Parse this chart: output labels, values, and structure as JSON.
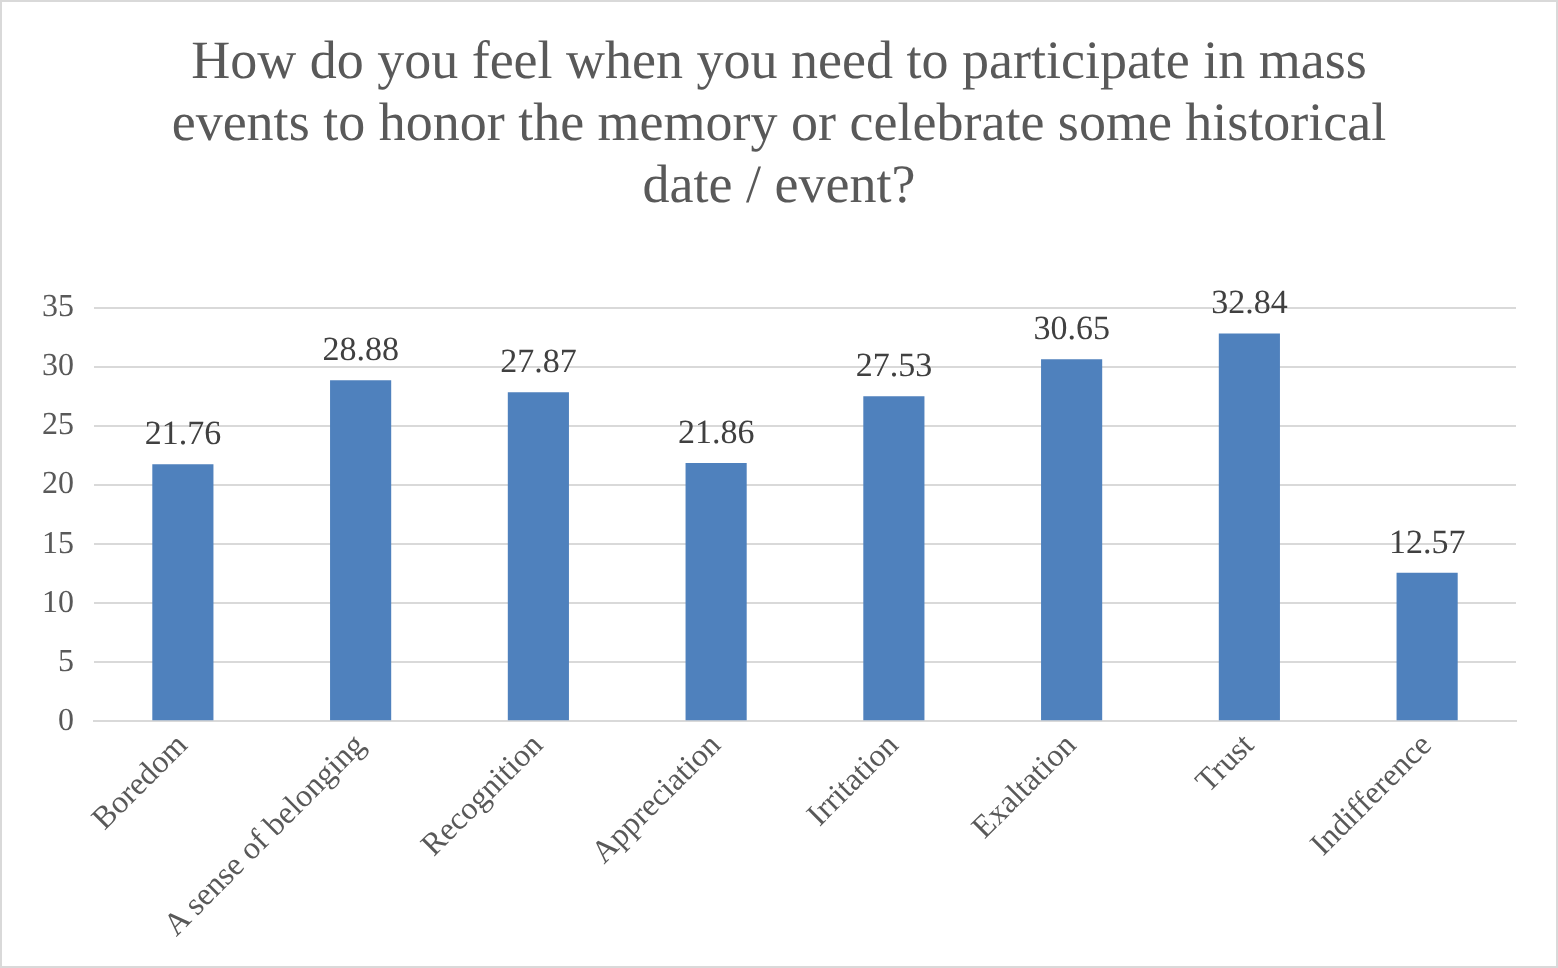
{
  "chart_data": {
    "type": "bar",
    "title": "How do you feel when you need to participate in mass events to honor the memory or celebrate some historical date / event?",
    "categories": [
      "Boredom",
      "A sense of belonging",
      "Recognition",
      "Appreciation",
      "Irritation",
      "Exaltation",
      "Trust",
      "Indifference"
    ],
    "values": [
      21.76,
      28.88,
      27.87,
      21.86,
      27.53,
      30.65,
      32.84,
      12.57
    ],
    "color": "#4f81bd",
    "ylim": [
      0,
      35
    ],
    "yticks": [
      0,
      5,
      10,
      15,
      20,
      25,
      30,
      35
    ],
    "grid": "y",
    "data_labels": true,
    "legend": false
  }
}
